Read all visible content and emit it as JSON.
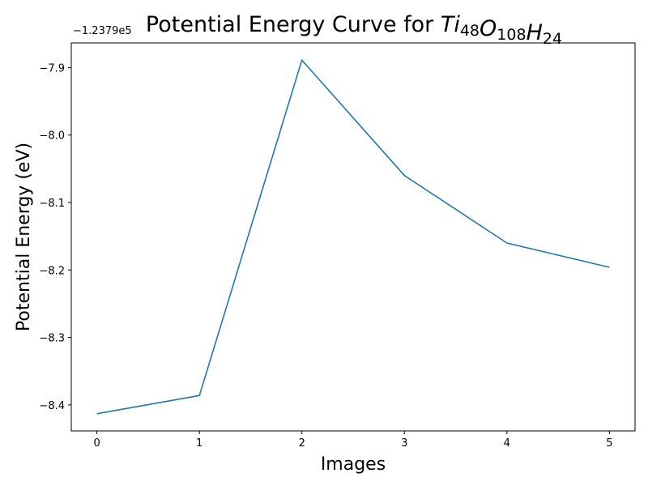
{
  "chart_data": {
    "type": "line",
    "title": {
      "prefix": "Potential Energy Curve for ",
      "formula": [
        {
          "sym": "Ti",
          "sub": "48"
        },
        {
          "sym": "O",
          "sub": "108"
        },
        {
          "sym": "H",
          "sub": "24"
        }
      ]
    },
    "xlabel": "Images",
    "ylabel": "Potential Energy (eV)",
    "offset_label": "−1.2379e5",
    "x": [
      0,
      1,
      2,
      3,
      4,
      5
    ],
    "y": [
      -8.413,
      -8.386,
      -7.889,
      -8.06,
      -8.16,
      -8.196
    ],
    "xlim": [
      -0.25,
      5.25
    ],
    "ylim": [
      -8.4385,
      -7.8635
    ],
    "xticks": [
      0,
      1,
      2,
      3,
      4,
      5
    ],
    "yticks": [
      -7.9,
      -8.0,
      -8.1,
      -8.2,
      -8.3,
      -8.4
    ],
    "line_color": "#1f77b4",
    "grid": false,
    "legend": "none"
  }
}
